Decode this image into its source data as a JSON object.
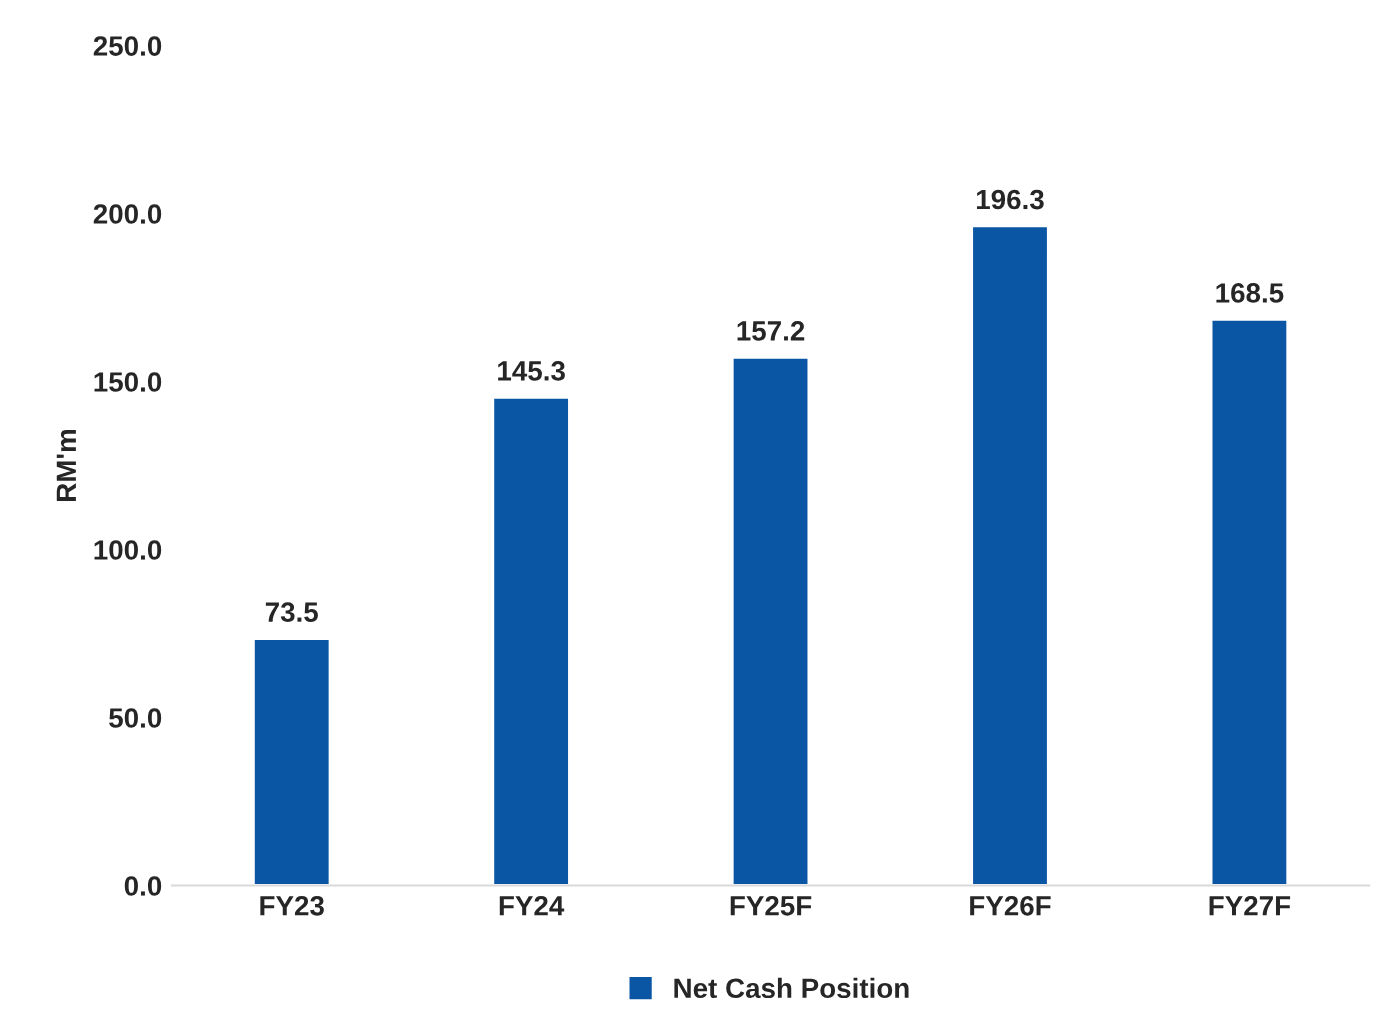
{
  "chart_data": {
    "type": "bar",
    "ylabel": "RM'm",
    "categories": [
      "FY23",
      "FY24",
      "FY25F",
      "FY26F",
      "FY27F"
    ],
    "series": [
      {
        "name": "Net Cash Position",
        "color": "#0b56a4",
        "values": [
          73.5,
          145.3,
          157.2,
          196.3,
          168.5
        ]
      }
    ],
    "value_labels": [
      "73.5",
      "145.3",
      "157.2",
      "196.3",
      "168.5"
    ],
    "ylim": [
      0,
      250
    ],
    "yticks": [
      {
        "value": 0,
        "label": "0.0"
      },
      {
        "value": 50,
        "label": "50.0"
      },
      {
        "value": 100,
        "label": "100.0"
      },
      {
        "value": 150,
        "label": "150.0"
      },
      {
        "value": 200,
        "label": "200.0"
      },
      {
        "value": 250,
        "label": "250.0"
      }
    ],
    "grid": false,
    "legend": "bottom"
  }
}
